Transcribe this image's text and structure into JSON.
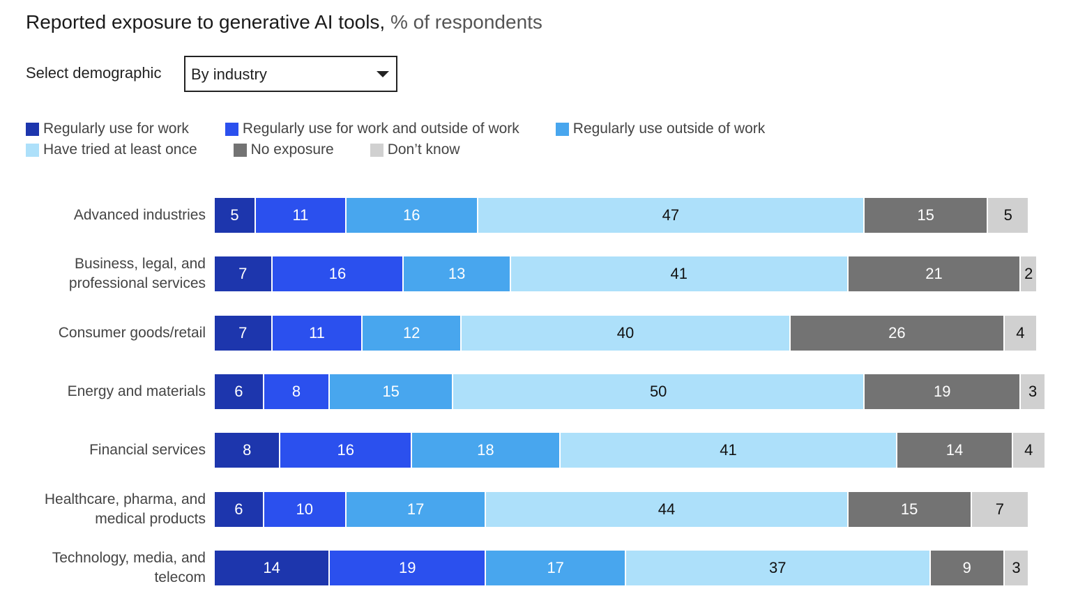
{
  "controls": {
    "label": "Select demographic",
    "selected": "By industry"
  },
  "chart_data": {
    "type": "stacked-bar-horizontal",
    "title": "Reported exposure to generative AI tools,",
    "subtitle": "% of respondents",
    "categories": [
      "Advanced industries",
      "Business, legal, and professional services",
      "Consumer goods/retail",
      "Energy and materials",
      "Financial services",
      "Healthcare, pharma, and medical products",
      "Technology, media, and telecom"
    ],
    "xlim": [
      0,
      100
    ],
    "legend": "top-left",
    "series": [
      {
        "name": "Regularly use for work",
        "color": "#1d36ad",
        "values": [
          5,
          7,
          7,
          6,
          8,
          6,
          14
        ]
      },
      {
        "name": "Regularly use for work and outside of work",
        "color": "#2b50ee",
        "values": [
          11,
          16,
          11,
          8,
          16,
          10,
          19
        ]
      },
      {
        "name": "Regularly use outside of work",
        "color": "#48a6ee",
        "values": [
          16,
          13,
          12,
          15,
          18,
          17,
          17
        ]
      },
      {
        "name": "Have tried at least once",
        "color": "#ade0fa",
        "values": [
          47,
          41,
          40,
          50,
          41,
          44,
          37
        ]
      },
      {
        "name": "No exposure",
        "color": "#737373",
        "values": [
          15,
          21,
          26,
          19,
          14,
          15,
          9
        ]
      },
      {
        "name": "Don’t know",
        "color": "#d0d0d0",
        "values": [
          5,
          2,
          4,
          3,
          4,
          7,
          3
        ]
      }
    ]
  }
}
